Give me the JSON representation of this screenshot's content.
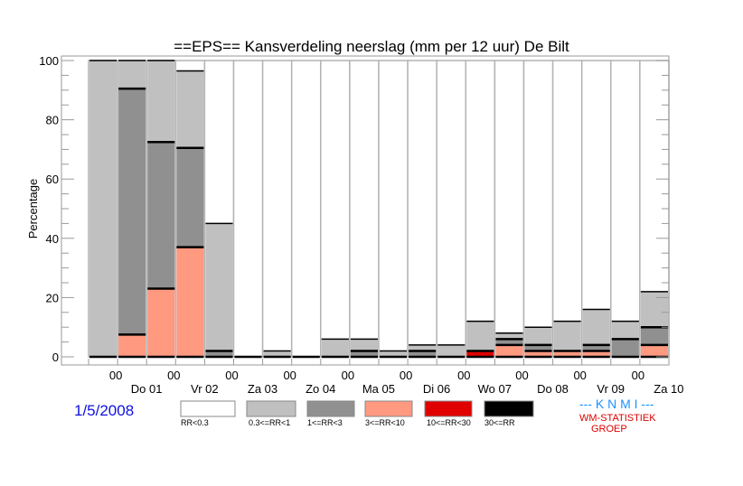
{
  "chart_data": {
    "type": "bar",
    "stacked": true,
    "title": "==EPS==   Kansverdeling neerslag (mm per 12 uur) De Bilt",
    "ylabel": "Percentage",
    "ylim": [
      0,
      100
    ],
    "yticks": [
      0,
      20,
      40,
      60,
      80,
      100
    ],
    "x_hour_label": "00",
    "day_labels": [
      "Do 01",
      "Vr 02",
      "Za 03",
      "Zo 04",
      "Ma 05",
      "Di 06",
      "Wo 07",
      "Do 08",
      "Vr 09",
      "Za 10"
    ],
    "series": [
      {
        "name": "RR<0.3",
        "color": "#ffffff",
        "values": [
          0,
          0,
          0,
          3.5,
          55,
          100,
          98,
          100,
          94,
          94,
          98,
          96,
          96,
          88,
          92,
          90,
          88,
          84,
          88,
          78
        ]
      },
      {
        "name": "0.3<=RR<1",
        "color": "#c0c0c0",
        "values": [
          100,
          9.5,
          27.5,
          26,
          43,
          0,
          2,
          0,
          6,
          4,
          2,
          2,
          4,
          10,
          2,
          6,
          10,
          12,
          6,
          12
        ]
      },
      {
        "name": "1<=RR<3",
        "color": "#909090",
        "values": [
          0,
          83,
          49.5,
          33.5,
          2,
          0,
          0,
          0,
          0,
          2,
          0,
          2,
          0,
          0,
          2,
          2,
          0,
          2,
          6,
          6
        ]
      },
      {
        "name": "3<=RR<10",
        "color": "#ff9980",
        "values": [
          0,
          7.5,
          23,
          37,
          0,
          0,
          0,
          0,
          0,
          0,
          0,
          0,
          0,
          0,
          4,
          2,
          2,
          2,
          0,
          4
        ]
      },
      {
        "name": "10<=RR<30",
        "color": "#e00000",
        "values": [
          0,
          0,
          0,
          0,
          0,
          0,
          0,
          0,
          0,
          0,
          0,
          0,
          0,
          2,
          0,
          0,
          0,
          0,
          0,
          0
        ]
      },
      {
        "name": "30<=RR",
        "color": "#000000",
        "values": [
          0,
          0,
          0,
          0,
          0,
          0,
          0,
          0,
          0,
          0,
          0,
          0,
          0,
          0,
          0,
          0,
          0,
          0,
          0,
          0
        ]
      }
    ],
    "legend_placement": "bottom",
    "grid": false
  },
  "date": "1/5/2008",
  "credit": {
    "org": "--- K N M I ---",
    "line1": "WM-STATISTIEK",
    "line2": "GROEP"
  }
}
